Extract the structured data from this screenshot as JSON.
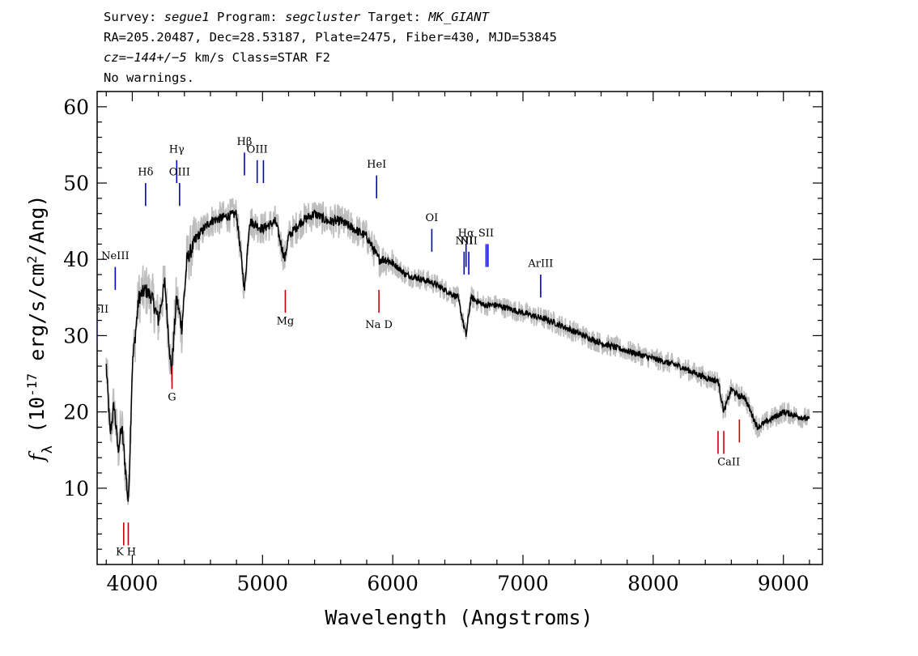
{
  "header": {
    "line1": {
      "survey_label": "Survey: ",
      "survey": "segue1",
      "program_label": " Program: ",
      "program": "segcluster",
      "target_label": " Target: ",
      "target": "MK_GIANT"
    },
    "line2": "RA=205.20487, Dec=28.53187, Plate=2475, Fiber=430, MJD=53845",
    "line3": {
      "cz_label": "cz",
      "cz_value": "=−144+/−5",
      "rest": " km/s Class=STAR F2"
    },
    "line4": "No warnings."
  },
  "colors": {
    "flux": "#000000",
    "noise": "#bdbdbd",
    "emission_line": "#0000cc",
    "absorption_line": "#cc0000"
  },
  "chart_data": {
    "type": "line",
    "title": "",
    "xlabel": "Wavelength (Angstroms)",
    "ylabel": "f_λ (10^-17 erg/s/cm^2/Ang)",
    "xlim": [
      3730,
      9300
    ],
    "ylim": [
      0,
      62
    ],
    "x_ticks": [
      4000,
      5000,
      6000,
      7000,
      8000,
      9000
    ],
    "y_ticks": [
      10,
      20,
      30,
      40,
      50,
      60
    ],
    "grid": false,
    "series": [
      {
        "x": [
          3800,
          3830,
          3860,
          3890,
          3920,
          3950,
          3970,
          4000,
          4050,
          4100,
          4150,
          4200,
          4250,
          4300,
          4340,
          4380,
          4420,
          4500,
          4600,
          4700,
          4800,
          4862,
          4900,
          5000,
          5100,
          5170,
          5200,
          5300,
          5400,
          5500,
          5600,
          5700,
          5800,
          5893,
          5950,
          6000,
          6100,
          6200,
          6300,
          6400,
          6500,
          6563,
          6600,
          6700,
          6800,
          6900,
          7000,
          7200,
          7400,
          7600,
          7800,
          8000,
          8200,
          8400,
          8500,
          8542,
          8600,
          8662,
          8700,
          8800,
          9000,
          9200
        ],
        "y": [
          26,
          17,
          21,
          15,
          18,
          12,
          8,
          26,
          35,
          36,
          35,
          32,
          37,
          25,
          35,
          31,
          40,
          43,
          45,
          45.5,
          46,
          36,
          45,
          44,
          45,
          40,
          43,
          45,
          46,
          45,
          45,
          44,
          43,
          40,
          40,
          39.5,
          38,
          37.5,
          37,
          36,
          35,
          30,
          35,
          34,
          34,
          33.5,
          33,
          32,
          30.5,
          29,
          28,
          27,
          26,
          24.5,
          24,
          20,
          23,
          22,
          22,
          18,
          20,
          19
        ]
      }
    ],
    "emission_lines": [
      {
        "label": "NeII",
        "wave": 3727,
        "ytop": 32,
        "ybot": 29,
        "label_y": 33
      },
      {
        "label": "NeIII",
        "wave": 3869,
        "ytop": 39,
        "ybot": 36,
        "label_y": 40
      },
      {
        "label": "Hδ",
        "wave": 4102,
        "ytop": 50,
        "ybot": 47,
        "label_y": 51
      },
      {
        "label": "Hγ",
        "wave": 4341,
        "ytop": 53,
        "ybot": 50,
        "label_y": 54
      },
      {
        "label": "OIII",
        "wave": 4363,
        "ytop": 50,
        "ybot": 47,
        "label_y": 51
      },
      {
        "label": "Hβ",
        "wave": 4861,
        "ytop": 54,
        "ybot": 51,
        "label_y": 55
      },
      {
        "label": "OIII",
        "wave": 4959,
        "ytop": 53,
        "ybot": 50,
        "label_y": 54
      },
      {
        "label": "OIII",
        "wave": 5007,
        "ytop": 53,
        "ybot": 50,
        "label_y": 54
      },
      {
        "label": "HeI",
        "wave": 5876,
        "ytop": 51,
        "ybot": 48,
        "label_y": 52
      },
      {
        "label": "OI",
        "wave": 6300,
        "ytop": 44,
        "ybot": 41,
        "label_y": 45
      },
      {
        "label": "NII",
        "wave": 6548,
        "ytop": 41,
        "ybot": 38,
        "label_y": 42
      },
      {
        "label": "Hα",
        "wave": 6563,
        "ytop": 42,
        "ybot": 39,
        "label_y": 43
      },
      {
        "label": "NII",
        "wave": 6584,
        "ytop": 41,
        "ybot": 38,
        "label_y": 42
      },
      {
        "label": "SII",
        "wave": 6717,
        "ytop": 42,
        "ybot": 39,
        "label_y": 43
      },
      {
        "label": "SII",
        "wave": 6731,
        "ytop": 42,
        "ybot": 39,
        "label_y": 43
      },
      {
        "label": "ArIII",
        "wave": 7136,
        "ytop": 38,
        "ybot": 35,
        "label_y": 39
      }
    ],
    "absorption_lines": [
      {
        "label": "K",
        "wave": 3934,
        "ytop": 5.5,
        "ybot": 2.5,
        "label_y": 1.2
      },
      {
        "label": "H",
        "wave": 3969,
        "ytop": 5.5,
        "ybot": 2.5,
        "label_y": 1.2
      },
      {
        "label": "G",
        "wave": 4305,
        "ytop": 26,
        "ybot": 23,
        "label_y": 21.5
      },
      {
        "label": "Mg",
        "wave": 5175,
        "ytop": 36,
        "ybot": 33,
        "label_y": 31.5
      },
      {
        "label": "Na D",
        "wave": 5894,
        "ytop": 36,
        "ybot": 33,
        "label_y": 31
      },
      {
        "label": "CaII",
        "wave": 8498,
        "ytop": 17.5,
        "ybot": 14.5,
        "label_y": 13
      },
      {
        "label": "CaII",
        "wave": 8542,
        "ytop": 17.5,
        "ybot": 14.5,
        "label_y": 13
      },
      {
        "label": "CaII",
        "wave": 8662,
        "ytop": 19,
        "ybot": 16,
        "label_y": 13
      }
    ],
    "absorption_group_labels": [
      {
        "label": "K H",
        "wave": 3951,
        "label_y": 1.2
      },
      {
        "label": "G",
        "wave": 4305,
        "label_y": 21.5
      },
      {
        "label": "Mg",
        "wave": 5175,
        "label_y": 31.5
      },
      {
        "label": "Na  D",
        "wave": 5894,
        "label_y": 31
      },
      {
        "label": "CaII",
        "wave": 8580,
        "label_y": 13
      }
    ]
  }
}
